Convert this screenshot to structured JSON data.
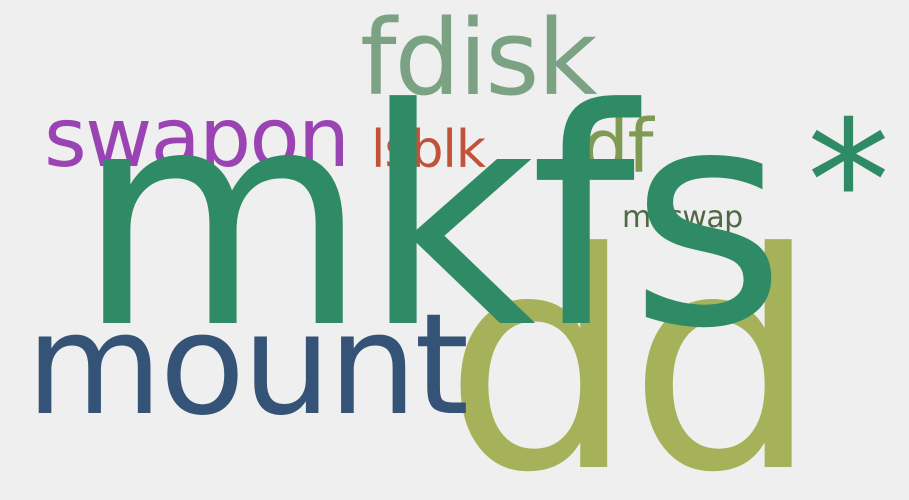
{
  "words": [
    {
      "text": "mkfs",
      "color": "#2e8b65"
    },
    {
      "text": "dd",
      "color": "#a6b25a"
    },
    {
      "text": "mount",
      "color": "#355376"
    },
    {
      "text": "fdisk",
      "color": "#7aa283"
    },
    {
      "text": "swapon",
      "color": "#9a44b4"
    },
    {
      "text": "lsblk",
      "color": "#c0533a"
    },
    {
      "text": "df",
      "color": "#7f9a52"
    },
    {
      "text": "mkswap",
      "color": "#4d6a43"
    },
    {
      "text": "*",
      "color": "#2e8b65"
    }
  ],
  "background": "#efefef"
}
